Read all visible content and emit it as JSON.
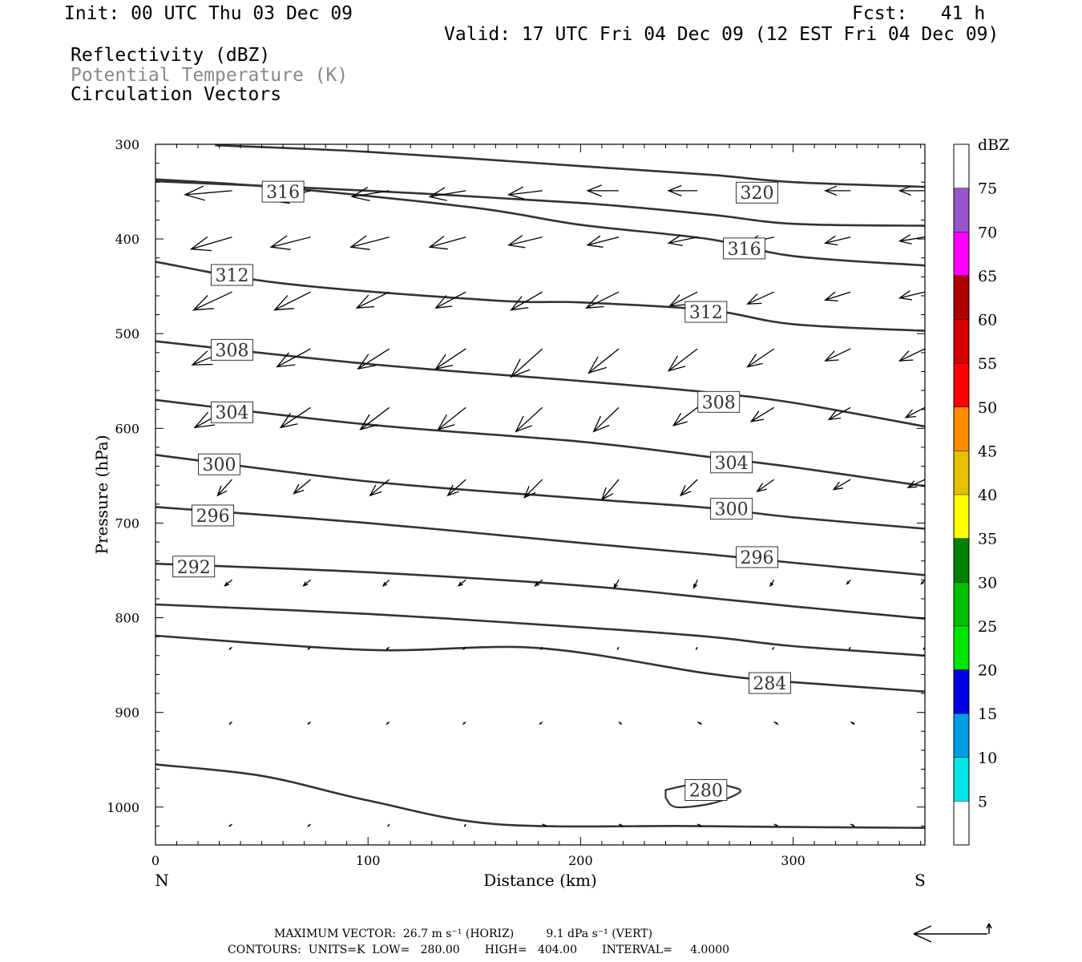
{
  "header": {
    "init": "Init: 00 UTC Thu 03 Dec 09",
    "fcst": "Fcst:   41 h",
    "valid": "Valid: 17 UTC Fri 04 Dec 09 (12 EST Fri 04 Dec 09)"
  },
  "legend": {
    "reflectivity": "Reflectivity (dBZ)",
    "theta": "Potential Temperature (K)",
    "vectors": "Circulation Vectors"
  },
  "colors": {
    "contour": "#333333",
    "theta_label": "#888888",
    "frame": "#000000"
  },
  "chart_data": {
    "type": "cross-section",
    "xlabel": "Distance (km)",
    "ylabel": "Pressure (hPa)",
    "xlim": [
      0,
      362
    ],
    "ylim": [
      1040,
      300
    ],
    "x_ticks": [
      0,
      100,
      200,
      300
    ],
    "y_ticks": [
      300,
      400,
      500,
      600,
      700,
      800,
      900,
      1000
    ],
    "x_end_labels": {
      "left": "N",
      "right": "S"
    },
    "theta_contours": [
      {
        "x": [
          28,
          100,
          200,
          260,
          300,
          362
        ],
        "p": [
          301,
          308,
          323,
          332,
          340,
          345
        ]
      },
      {
        "x": [
          0,
          100,
          200,
          260,
          300,
          362
        ],
        "p": [
          339,
          349,
          362,
          374,
          384,
          386
        ]
      },
      {
        "x": [
          0,
          60,
          150,
          200,
          260,
          300,
          362
        ],
        "p": [
          337,
          346,
          367,
          385,
          400,
          418,
          428
        ]
      },
      {
        "x": [
          0,
          60,
          160,
          200,
          260,
          300,
          362
        ],
        "p": [
          424,
          447,
          465,
          467,
          475,
          490,
          497
        ]
      },
      {
        "x": [
          0,
          100,
          200,
          260,
          300,
          362
        ],
        "p": [
          508,
          532,
          550,
          562,
          573,
          598
        ]
      },
      {
        "x": [
          0,
          100,
          200,
          260,
          300,
          362
        ],
        "p": [
          570,
          596,
          614,
          630,
          641,
          661
        ]
      },
      {
        "x": [
          0,
          100,
          200,
          260,
          300,
          362
        ],
        "p": [
          628,
          656,
          674,
          684,
          694,
          706
        ]
      },
      {
        "x": [
          0,
          100,
          200,
          260,
          300,
          362
        ],
        "p": [
          683,
          700,
          721,
          733,
          742,
          755
        ]
      },
      {
        "x": [
          0,
          100,
          200,
          260,
          300,
          362
        ],
        "p": [
          743,
          752,
          766,
          779,
          788,
          801
        ]
      },
      {
        "x": [
          0,
          100,
          200,
          260,
          300,
          362
        ],
        "p": [
          786,
          796,
          810,
          820,
          830,
          840
        ]
      },
      {
        "x": [
          0,
          100,
          180,
          260,
          300,
          362
        ],
        "p": [
          819,
          834,
          832,
          859,
          868,
          878
        ]
      },
      {
        "x": [
          0,
          50,
          100,
          160,
          250,
          300,
          362
        ],
        "p": [
          955,
          967,
          993,
          1018,
          1020,
          1021,
          1022
        ]
      }
    ],
    "contour_280_loop": {
      "x": [
        240,
        250,
        262,
        270,
        275,
        262,
        245,
        240
      ],
      "p": [
        982,
        977,
        975,
        978,
        984,
        996,
        1000,
        990
      ]
    },
    "theta_labels": [
      {
        "text": "316",
        "x": 60,
        "p": 350
      },
      {
        "text": "320",
        "x": 283,
        "p": 351
      },
      {
        "text": "316",
        "x": 277,
        "p": 410
      },
      {
        "text": "312",
        "x": 36,
        "p": 438
      },
      {
        "text": "312",
        "x": 259,
        "p": 477
      },
      {
        "text": "308",
        "x": 36,
        "p": 517
      },
      {
        "text": "308",
        "x": 265,
        "p": 572
      },
      {
        "text": "304",
        "x": 36,
        "p": 583
      },
      {
        "text": "304",
        "x": 271,
        "p": 636
      },
      {
        "text": "300",
        "x": 30,
        "p": 638
      },
      {
        "text": "300",
        "x": 271,
        "p": 685
      },
      {
        "text": "296",
        "x": 27,
        "p": 692
      },
      {
        "text": "296",
        "x": 283,
        "p": 736
      },
      {
        "text": "292",
        "x": 18,
        "p": 746
      },
      {
        "text": "284",
        "x": 289,
        "p": 869
      },
      {
        "text": "280",
        "x": 259,
        "p": 982
      }
    ],
    "vector_rows": [
      {
        "p": 349,
        "x": [
          36,
          73,
          110,
          146,
          182,
          218,
          255,
          291,
          327,
          362
        ],
        "dx": [
          -39,
          -34,
          -31,
          -30,
          -28,
          -26,
          -24,
          -22,
          -21,
          -21
        ],
        "dp": [
          2,
          5,
          3,
          3,
          2,
          0,
          0,
          0,
          0,
          0
        ]
      },
      {
        "p": 398,
        "x": [
          36,
          73,
          110,
          146,
          182,
          218,
          255,
          291,
          327,
          362
        ],
        "dx": [
          -34,
          -33,
          -32,
          -30,
          -28,
          -26,
          -24,
          -22,
          -21,
          -21
        ],
        "dp": [
          6,
          5,
          5,
          5,
          4,
          4,
          3,
          3,
          3,
          2
        ]
      },
      {
        "p": 456,
        "x": [
          36,
          73,
          110,
          146,
          182,
          218,
          255,
          291,
          327,
          362
        ],
        "dx": [
          -32,
          -30,
          -27,
          -25,
          -26,
          -27,
          -23,
          -22,
          -21,
          -21
        ],
        "dp": [
          9,
          9,
          8,
          8,
          9,
          8,
          7,
          6,
          4,
          3
        ]
      },
      {
        "p": 516,
        "x": [
          36,
          73,
          110,
          146,
          182,
          218,
          255,
          291,
          327,
          362
        ],
        "dx": [
          -33,
          -28,
          -26,
          -25,
          -26,
          -25,
          -24,
          -22,
          -21,
          -21
        ],
        "dp": [
          8,
          9,
          10,
          10,
          14,
          12,
          11,
          9,
          6,
          6
        ]
      },
      {
        "p": 578,
        "x": [
          36,
          73,
          110,
          146,
          182,
          218,
          255,
          291,
          327,
          362
        ],
        "dx": [
          -31,
          -25,
          -24,
          -23,
          -22,
          -21,
          -20,
          -19,
          -18,
          -16
        ],
        "dp": [
          10,
          10,
          11,
          11,
          12,
          12,
          9,
          7,
          6,
          5
        ]
      },
      {
        "p": 654,
        "x": [
          36,
          73,
          110,
          146,
          182,
          218,
          255,
          291,
          327,
          362
        ],
        "dx": [
          -12,
          -14,
          -16,
          -15,
          -15,
          -14,
          -14,
          -14,
          -14,
          -14
        ],
        "dp": [
          8,
          7,
          8,
          8,
          9,
          10,
          8,
          6,
          5,
          4
        ]
      },
      {
        "p": 760,
        "x": [
          36,
          73,
          110,
          146,
          182,
          218,
          255,
          291,
          327,
          362
        ],
        "dx": [
          -6,
          -6,
          -5,
          -6,
          -6,
          -4,
          -3,
          -3,
          -3,
          -3
        ],
        "dp": [
          3,
          3,
          3,
          3,
          3,
          4,
          4,
          3,
          2,
          2
        ]
      },
      {
        "p": 831,
        "x": [
          36,
          73,
          110,
          146,
          182,
          218,
          255,
          291,
          327,
          362
        ],
        "dx": [
          -2,
          -2,
          -2,
          -2,
          -1,
          -1,
          -1,
          -1,
          -1,
          -1
        ],
        "dp": [
          1,
          1,
          1,
          1,
          1,
          1,
          1,
          1,
          1,
          1
        ]
      },
      {
        "p": 910,
        "x": [
          36,
          73,
          110,
          146,
          182,
          218,
          255,
          291,
          327
        ],
        "dx": [
          -2,
          -2,
          -2,
          -2,
          -2,
          2,
          3,
          3,
          3
        ],
        "dp": [
          1,
          1,
          1,
          1,
          1,
          1,
          1,
          1,
          1
        ]
      },
      {
        "p": 1018,
        "x": [
          36,
          73,
          110,
          146,
          182,
          218,
          255,
          291,
          327
        ],
        "dx": [
          -2,
          -2,
          -1,
          -1,
          3,
          3,
          3,
          3,
          3
        ],
        "dp": [
          1,
          1,
          1,
          1,
          1,
          1,
          1,
          1,
          1
        ]
      }
    ],
    "colorbar": {
      "label": "dBZ",
      "levels": [
        "5",
        "10",
        "15",
        "20",
        "25",
        "30",
        "35",
        "40",
        "45",
        "50",
        "55",
        "60",
        "65",
        "70",
        "75"
      ],
      "colors": [
        "#ffffff",
        "#00e5e5",
        "#009fe5",
        "#0000e5",
        "#00e500",
        "#00c000",
        "#008000",
        "#ffff00",
        "#e5bf00",
        "#ff8c00",
        "#ff0000",
        "#d40000",
        "#b00000",
        "#ff00ff",
        "#9955cc",
        "#ffffff"
      ]
    }
  },
  "footer": {
    "max_vector": "MAXIMUM VECTOR:  26.7 m s⁻¹ (HORIZ)         9.1 dPa s⁻¹ (VERT)",
    "contours": "CONTOURS:  UNITS=K  LOW=   280.00       HIGH=   404.00       INTERVAL=     4.0000"
  }
}
